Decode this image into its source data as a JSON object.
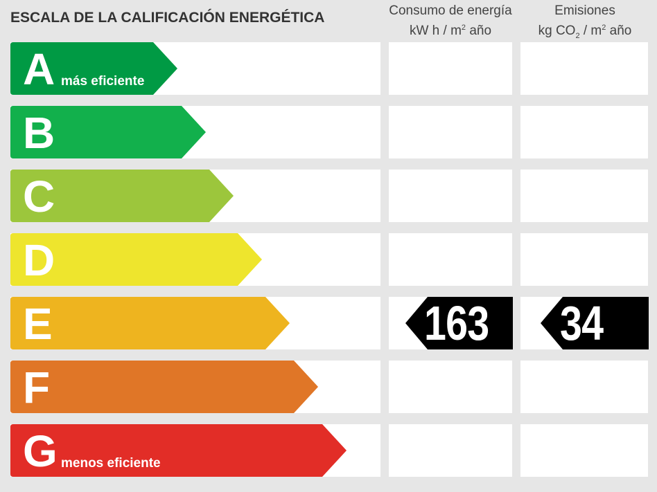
{
  "title": "ESCALA DE LA CALIFICACIÓN ENERGÉTICA",
  "consumo_header": {
    "line1": "Consumo de energía",
    "line2_pre": "kW h  / m",
    "line2_sup": "2",
    "line2_post": " año"
  },
  "emisiones_header": {
    "line1": "Emisiones",
    "line2_pre": "kg CO",
    "line2_sub": "2",
    "line2_mid": "  / m",
    "line2_sup": "2",
    "line2_post": " año"
  },
  "ratings": [
    {
      "letter": "A",
      "label": "más eficiente",
      "color": "#009a44"
    },
    {
      "letter": "B",
      "label": "",
      "color": "#12b04c"
    },
    {
      "letter": "C",
      "label": "",
      "color": "#9cc63c"
    },
    {
      "letter": "D",
      "label": "",
      "color": "#eee52d"
    },
    {
      "letter": "E",
      "label": "",
      "color": "#eeb41f"
    },
    {
      "letter": "F",
      "label": "",
      "color": "#e07627"
    },
    {
      "letter": "G",
      "label": "menos eficiente",
      "color": "#e22d27"
    }
  ],
  "current": {
    "rating": "E",
    "consumo_value": "163",
    "emisiones_value": "34",
    "tag_color": "#000000"
  }
}
